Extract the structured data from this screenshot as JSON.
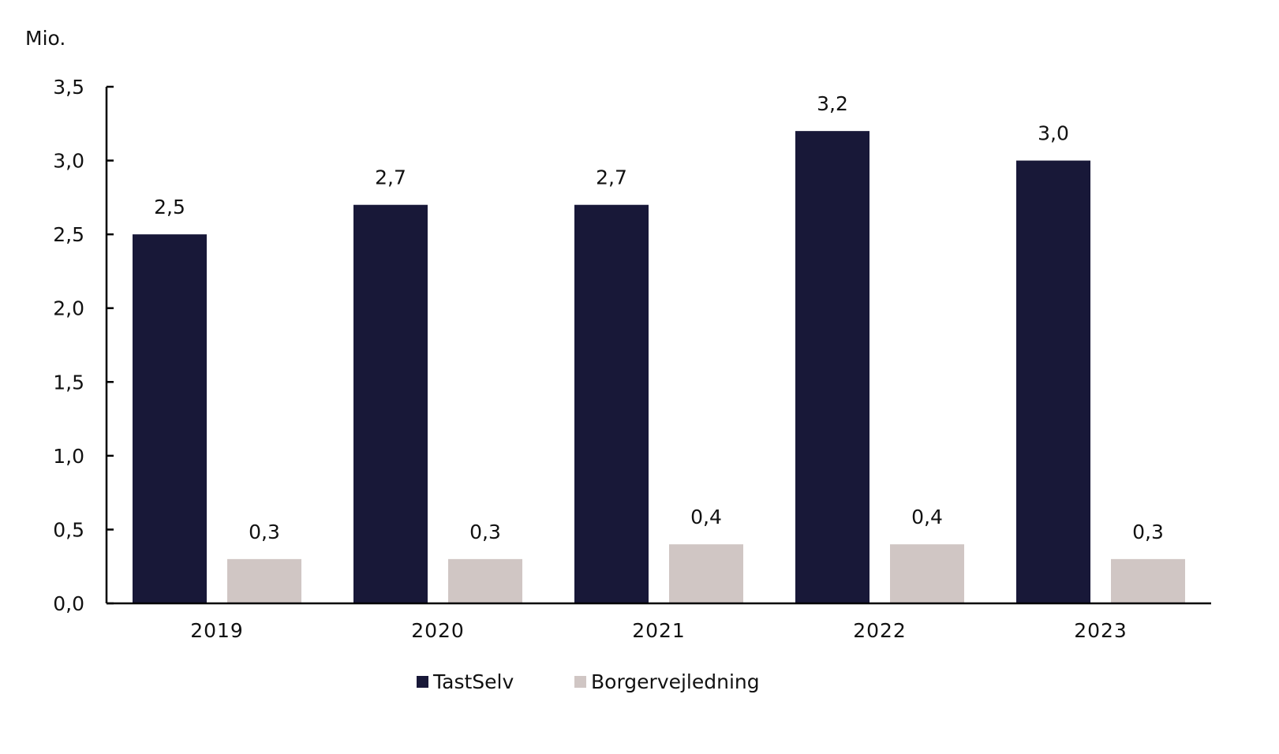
{
  "chart_data": {
    "type": "bar",
    "unit_label": "Mio.",
    "categories": [
      "2019",
      "2020",
      "2021",
      "2022",
      "2023"
    ],
    "series": [
      {
        "name": "TastSelv",
        "values": [
          2.5,
          2.7,
          2.7,
          3.2,
          3.0
        ],
        "labels": [
          "2,5",
          "2,7",
          "2,7",
          "3,2",
          "3,0"
        ],
        "color": "#181838"
      },
      {
        "name": "Borgervejledning",
        "values": [
          0.3,
          0.3,
          0.4,
          0.4,
          0.3
        ],
        "labels": [
          "0,3",
          "0,3",
          "0,4",
          "0,4",
          "0,3"
        ],
        "color": "#d0c6c4"
      }
    ],
    "ylim": [
      0,
      3.5
    ],
    "yticks": [
      0,
      0.5,
      1.0,
      1.5,
      2.0,
      2.5,
      3.0,
      3.5
    ],
    "ytick_labels": [
      "0,0",
      "0,5",
      "1,0",
      "1,5",
      "2,0",
      "2,5",
      "3,0",
      "3,5"
    ],
    "grid": false,
    "legend_position": "bottom-center"
  }
}
